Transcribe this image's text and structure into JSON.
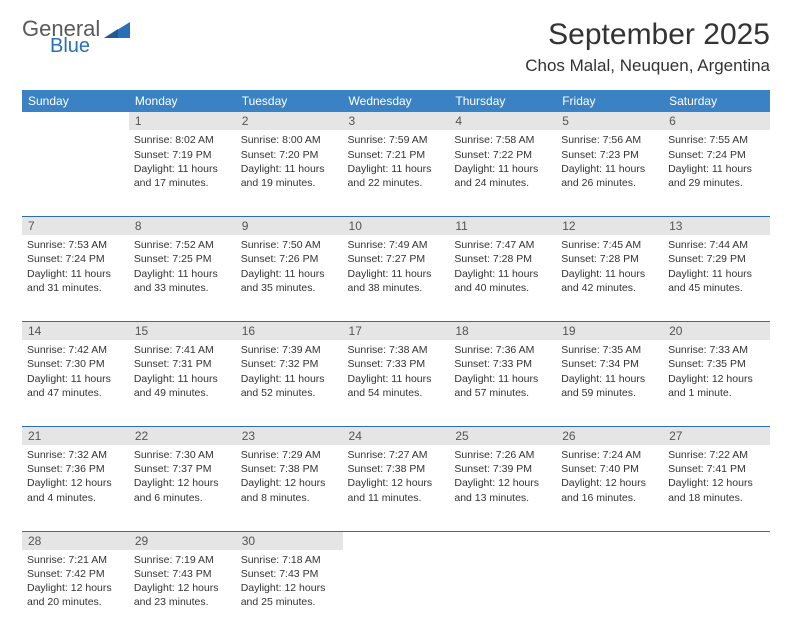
{
  "brand": {
    "general": "General",
    "blue": "Blue"
  },
  "title": "September 2025",
  "location": "Chos Malal, Neuquen, Argentina",
  "colors": {
    "header_bg": "#3b82c4",
    "header_text": "#ffffff",
    "daynum_bg": "#e5e5e5",
    "daynum_text": "#555555",
    "body_text": "#333333",
    "rule": "#2a6fb5",
    "logo_gray": "#5a5a5a",
    "logo_blue": "#2a6fb5"
  },
  "weekdays": [
    "Sunday",
    "Monday",
    "Tuesday",
    "Wednesday",
    "Thursday",
    "Friday",
    "Saturday"
  ],
  "weeks": [
    {
      "nums": [
        "",
        "1",
        "2",
        "3",
        "4",
        "5",
        "6"
      ],
      "cells": [
        null,
        {
          "sunrise": "Sunrise: 8:02 AM",
          "sunset": "Sunset: 7:19 PM",
          "day": "Daylight: 11 hours and 17 minutes."
        },
        {
          "sunrise": "Sunrise: 8:00 AM",
          "sunset": "Sunset: 7:20 PM",
          "day": "Daylight: 11 hours and 19 minutes."
        },
        {
          "sunrise": "Sunrise: 7:59 AM",
          "sunset": "Sunset: 7:21 PM",
          "day": "Daylight: 11 hours and 22 minutes."
        },
        {
          "sunrise": "Sunrise: 7:58 AM",
          "sunset": "Sunset: 7:22 PM",
          "day": "Daylight: 11 hours and 24 minutes."
        },
        {
          "sunrise": "Sunrise: 7:56 AM",
          "sunset": "Sunset: 7:23 PM",
          "day": "Daylight: 11 hours and 26 minutes."
        },
        {
          "sunrise": "Sunrise: 7:55 AM",
          "sunset": "Sunset: 7:24 PM",
          "day": "Daylight: 11 hours and 29 minutes."
        }
      ]
    },
    {
      "nums": [
        "7",
        "8",
        "9",
        "10",
        "11",
        "12",
        "13"
      ],
      "cells": [
        {
          "sunrise": "Sunrise: 7:53 AM",
          "sunset": "Sunset: 7:24 PM",
          "day": "Daylight: 11 hours and 31 minutes."
        },
        {
          "sunrise": "Sunrise: 7:52 AM",
          "sunset": "Sunset: 7:25 PM",
          "day": "Daylight: 11 hours and 33 minutes."
        },
        {
          "sunrise": "Sunrise: 7:50 AM",
          "sunset": "Sunset: 7:26 PM",
          "day": "Daylight: 11 hours and 35 minutes."
        },
        {
          "sunrise": "Sunrise: 7:49 AM",
          "sunset": "Sunset: 7:27 PM",
          "day": "Daylight: 11 hours and 38 minutes."
        },
        {
          "sunrise": "Sunrise: 7:47 AM",
          "sunset": "Sunset: 7:28 PM",
          "day": "Daylight: 11 hours and 40 minutes."
        },
        {
          "sunrise": "Sunrise: 7:45 AM",
          "sunset": "Sunset: 7:28 PM",
          "day": "Daylight: 11 hours and 42 minutes."
        },
        {
          "sunrise": "Sunrise: 7:44 AM",
          "sunset": "Sunset: 7:29 PM",
          "day": "Daylight: 11 hours and 45 minutes."
        }
      ]
    },
    {
      "nums": [
        "14",
        "15",
        "16",
        "17",
        "18",
        "19",
        "20"
      ],
      "cells": [
        {
          "sunrise": "Sunrise: 7:42 AM",
          "sunset": "Sunset: 7:30 PM",
          "day": "Daylight: 11 hours and 47 minutes."
        },
        {
          "sunrise": "Sunrise: 7:41 AM",
          "sunset": "Sunset: 7:31 PM",
          "day": "Daylight: 11 hours and 49 minutes."
        },
        {
          "sunrise": "Sunrise: 7:39 AM",
          "sunset": "Sunset: 7:32 PM",
          "day": "Daylight: 11 hours and 52 minutes."
        },
        {
          "sunrise": "Sunrise: 7:38 AM",
          "sunset": "Sunset: 7:33 PM",
          "day": "Daylight: 11 hours and 54 minutes."
        },
        {
          "sunrise": "Sunrise: 7:36 AM",
          "sunset": "Sunset: 7:33 PM",
          "day": "Daylight: 11 hours and 57 minutes."
        },
        {
          "sunrise": "Sunrise: 7:35 AM",
          "sunset": "Sunset: 7:34 PM",
          "day": "Daylight: 11 hours and 59 minutes."
        },
        {
          "sunrise": "Sunrise: 7:33 AM",
          "sunset": "Sunset: 7:35 PM",
          "day": "Daylight: 12 hours and 1 minute."
        }
      ]
    },
    {
      "nums": [
        "21",
        "22",
        "23",
        "24",
        "25",
        "26",
        "27"
      ],
      "cells": [
        {
          "sunrise": "Sunrise: 7:32 AM",
          "sunset": "Sunset: 7:36 PM",
          "day": "Daylight: 12 hours and 4 minutes."
        },
        {
          "sunrise": "Sunrise: 7:30 AM",
          "sunset": "Sunset: 7:37 PM",
          "day": "Daylight: 12 hours and 6 minutes."
        },
        {
          "sunrise": "Sunrise: 7:29 AM",
          "sunset": "Sunset: 7:38 PM",
          "day": "Daylight: 12 hours and 8 minutes."
        },
        {
          "sunrise": "Sunrise: 7:27 AM",
          "sunset": "Sunset: 7:38 PM",
          "day": "Daylight: 12 hours and 11 minutes."
        },
        {
          "sunrise": "Sunrise: 7:26 AM",
          "sunset": "Sunset: 7:39 PM",
          "day": "Daylight: 12 hours and 13 minutes."
        },
        {
          "sunrise": "Sunrise: 7:24 AM",
          "sunset": "Sunset: 7:40 PM",
          "day": "Daylight: 12 hours and 16 minutes."
        },
        {
          "sunrise": "Sunrise: 7:22 AM",
          "sunset": "Sunset: 7:41 PM",
          "day": "Daylight: 12 hours and 18 minutes."
        }
      ]
    },
    {
      "nums": [
        "28",
        "29",
        "30",
        "",
        "",
        "",
        ""
      ],
      "cells": [
        {
          "sunrise": "Sunrise: 7:21 AM",
          "sunset": "Sunset: 7:42 PM",
          "day": "Daylight: 12 hours and 20 minutes."
        },
        {
          "sunrise": "Sunrise: 7:19 AM",
          "sunset": "Sunset: 7:43 PM",
          "day": "Daylight: 12 hours and 23 minutes."
        },
        {
          "sunrise": "Sunrise: 7:18 AM",
          "sunset": "Sunset: 7:43 PM",
          "day": "Daylight: 12 hours and 25 minutes."
        },
        null,
        null,
        null,
        null
      ]
    }
  ]
}
